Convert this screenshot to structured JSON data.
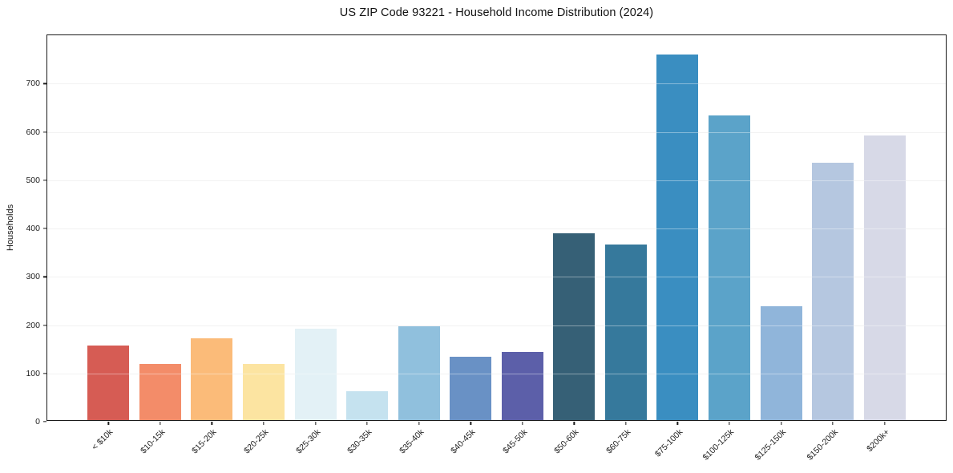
{
  "figure": {
    "title": "US ZIP Code 93221 - Household Income Distribution (2024)"
  },
  "chart_data": {
    "type": "bar",
    "title": "US ZIP Code 93221 - Household Income Distribution (2024)",
    "xlabel": "",
    "ylabel": "Households",
    "categories": [
      "< $10k",
      "$10-15k",
      "$15-20k",
      "$20-25k",
      "$25-30k",
      "$30-35k",
      "$35-40k",
      "$40-45k",
      "$45-50k",
      "$50-60k",
      "$60-75k",
      "$75-100k",
      "$100-125k",
      "$125-150k",
      "$150-200k",
      "$200k+"
    ],
    "values": [
      155,
      117,
      170,
      117,
      190,
      59,
      195,
      131,
      141,
      386,
      364,
      757,
      631,
      236,
      533,
      590
    ],
    "bar_colors": [
      "#d65c54",
      "#f38c69",
      "#fbbb79",
      "#fce4a1",
      "#e3f1f6",
      "#c5e2ef",
      "#90c0dd",
      "#6991c5",
      "#5c5fa9",
      "#366076",
      "#36799c",
      "#3a8ec1",
      "#5ba3c9",
      "#90b5da",
      "#b5c7e0",
      "#d7d9e7"
    ],
    "ylim": [
      0,
      800
    ],
    "yticks": [
      0,
      100,
      200,
      300,
      400,
      500,
      600,
      700
    ],
    "grid": "horizontal-light",
    "legend": "none",
    "axis_color": "#1a1a1a",
    "grid_color": "#e9e9e9"
  }
}
